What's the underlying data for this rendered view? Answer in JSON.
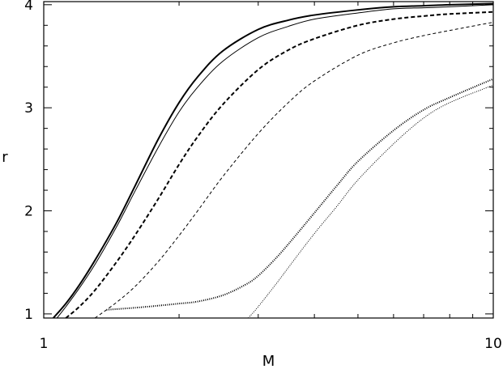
{
  "chart_data": {
    "type": "line",
    "title": "",
    "xlabel": "M",
    "ylabel": "r",
    "xscale": "log",
    "xlim": [
      1,
      10
    ],
    "ylim": [
      0.96,
      4.03
    ],
    "xticks": [
      {
        "value": 1,
        "label": "1"
      },
      {
        "value": 10,
        "label": "10"
      }
    ],
    "yticks": [
      {
        "value": 1,
        "label": "1"
      },
      {
        "value": 2,
        "label": "2"
      },
      {
        "value": 3,
        "label": "3"
      },
      {
        "value": 4,
        "label": "4"
      }
    ],
    "grid": false,
    "legend": "none",
    "series": [
      {
        "style": "solid-thick",
        "x": [
          1.05,
          1.12,
          1.2,
          1.3,
          1.45,
          1.6,
          1.8,
          2.0,
          2.2,
          2.5,
          3.0,
          3.5,
          4.0,
          5.0,
          6.0,
          7.0,
          8.0,
          10.0
        ],
        "y": [
          0.96,
          1.1,
          1.28,
          1.52,
          1.88,
          2.25,
          2.7,
          3.05,
          3.3,
          3.55,
          3.76,
          3.85,
          3.9,
          3.95,
          3.98,
          3.99,
          4.0,
          4.01
        ]
      },
      {
        "style": "solid-thin",
        "x": [
          1.07,
          1.12,
          1.2,
          1.3,
          1.45,
          1.6,
          1.8,
          2.0,
          2.2,
          2.5,
          3.0,
          3.5,
          4.0,
          5.0,
          6.0,
          7.0,
          8.0,
          10.0
        ],
        "y": [
          0.96,
          1.07,
          1.25,
          1.48,
          1.84,
          2.2,
          2.62,
          2.96,
          3.2,
          3.45,
          3.68,
          3.79,
          3.86,
          3.92,
          3.96,
          3.97,
          3.98,
          4.0
        ]
      },
      {
        "style": "dashed-thick",
        "x": [
          1.12,
          1.2,
          1.3,
          1.45,
          1.6,
          1.8,
          2.0,
          2.2,
          2.5,
          3.0,
          3.5,
          4.0,
          5.0,
          6.0,
          7.0,
          8.0,
          10.0
        ],
        "y": [
          0.96,
          1.07,
          1.23,
          1.5,
          1.77,
          2.12,
          2.45,
          2.72,
          3.03,
          3.37,
          3.56,
          3.67,
          3.8,
          3.86,
          3.89,
          3.91,
          3.93
        ]
      },
      {
        "style": "dashed-thin",
        "x": [
          1.3,
          1.45,
          1.6,
          1.8,
          2.0,
          2.2,
          2.5,
          3.0,
          3.5,
          4.0,
          5.0,
          6.0,
          7.0,
          8.0,
          10.0
        ],
        "y": [
          0.96,
          1.11,
          1.27,
          1.51,
          1.76,
          2.0,
          2.33,
          2.75,
          3.05,
          3.26,
          3.51,
          3.63,
          3.7,
          3.75,
          3.83
        ]
      },
      {
        "style": "dotted-thick",
        "x": [
          1.38,
          1.6,
          1.8,
          2.0,
          2.2,
          2.5,
          2.8,
          3.0,
          3.3,
          3.6,
          4.0,
          4.5,
          5.0,
          6.0,
          7.0,
          8.0,
          10.0
        ],
        "y": [
          1.04,
          1.06,
          1.08,
          1.1,
          1.12,
          1.18,
          1.28,
          1.37,
          1.55,
          1.74,
          1.98,
          2.25,
          2.48,
          2.78,
          2.98,
          3.1,
          3.28
        ]
      },
      {
        "style": "dotted-thin",
        "x": [
          2.85,
          3.0,
          3.3,
          3.6,
          4.0,
          4.5,
          5.0,
          6.0,
          7.0,
          8.0,
          10.0
        ],
        "y": [
          0.96,
          1.07,
          1.3,
          1.52,
          1.78,
          2.05,
          2.3,
          2.65,
          2.9,
          3.05,
          3.22
        ]
      }
    ]
  }
}
